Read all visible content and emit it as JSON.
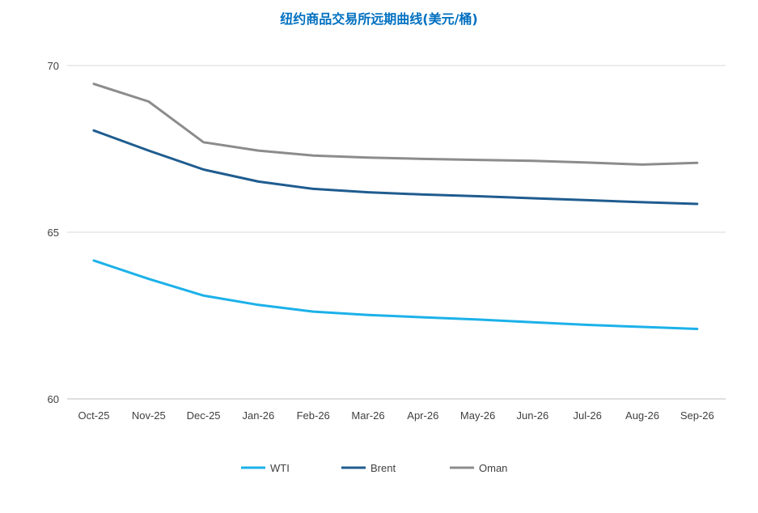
{
  "chart_data": {
    "type": "line",
    "title": "纽约商品交易所远期曲线(美元/桶)",
    "title_color": "#0070C0",
    "categories": [
      "Oct-25",
      "Nov-25",
      "Dec-25",
      "Jan-26",
      "Feb-26",
      "Mar-26",
      "Apr-26",
      "May-26",
      "Jun-26",
      "Jul-26",
      "Aug-26",
      "Sep-26"
    ],
    "ylim": [
      60,
      70
    ],
    "yticks": [
      60,
      65,
      70
    ],
    "grid": true,
    "legend": "bottom",
    "series": [
      {
        "name": "WTI",
        "color": "#1CB1E9",
        "values": [
          64.15,
          63.6,
          63.1,
          62.82,
          62.62,
          62.52,
          62.45,
          62.38,
          62.3,
          62.22,
          62.16,
          62.1
        ]
      },
      {
        "name": "Brent",
        "color": "#1F5C8F",
        "values": [
          68.05,
          67.45,
          66.88,
          66.52,
          66.3,
          66.2,
          66.13,
          66.08,
          66.02,
          65.96,
          65.9,
          65.85
        ]
      },
      {
        "name": "Oman",
        "color": "#8C8C8C",
        "values": [
          69.45,
          68.92,
          67.7,
          67.45,
          67.3,
          67.24,
          67.2,
          67.17,
          67.14,
          67.09,
          67.03,
          67.08
        ]
      }
    ]
  }
}
